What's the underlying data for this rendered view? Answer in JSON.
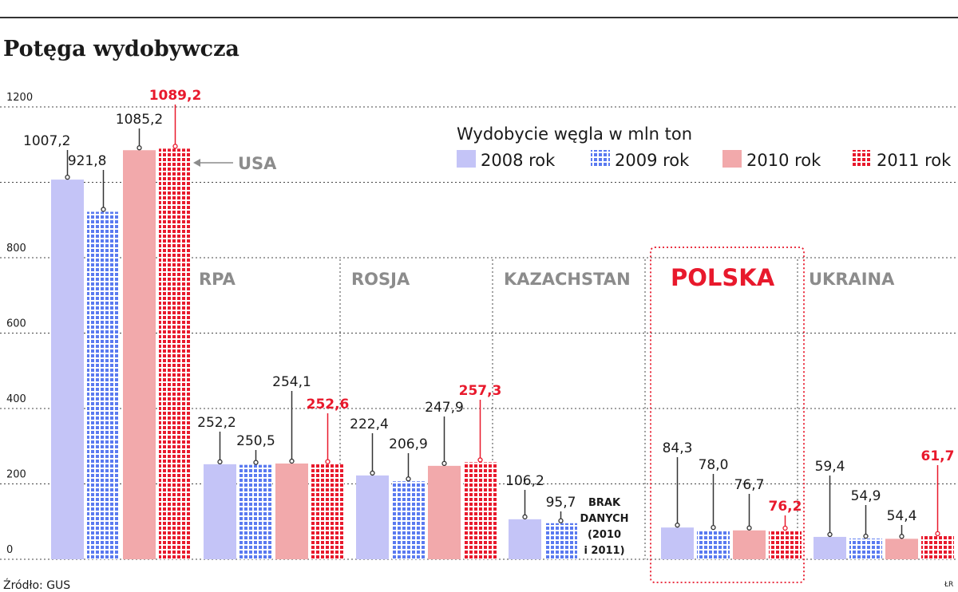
{
  "chart_data": {
    "type": "bar",
    "title": "Potęga wydobywcza",
    "legend_title": "Wydobycie węgla w mln ton",
    "ylim": [
      0,
      1200
    ],
    "yticks": [
      "0",
      "200",
      "400",
      "600",
      "800",
      "1200"
    ],
    "legend_position": "top-right",
    "grid": true,
    "series": [
      {
        "name": "2008 rok",
        "color": "#c4c4f7",
        "pattern": "solid"
      },
      {
        "name": "2009 rok",
        "color": "#5a7af0",
        "pattern": "checkered"
      },
      {
        "name": "2010 rok",
        "color": "#f2a9ab",
        "pattern": "solid"
      },
      {
        "name": "2011 rok",
        "color": "#e8192c",
        "pattern": "checkered"
      }
    ],
    "groups": [
      {
        "name": "USA",
        "values": [
          1007.2,
          921.8,
          1085.2,
          1089.2
        ],
        "labels": [
          "1007,2",
          "921,8",
          "1085,2",
          "1089,2"
        ],
        "highlight": false
      },
      {
        "name": "RPA",
        "values": [
          252.2,
          250.5,
          254.1,
          252.6
        ],
        "labels": [
          "252,2",
          "250,5",
          "254,1",
          "252,6"
        ],
        "highlight": false
      },
      {
        "name": "ROSJA",
        "values": [
          222.4,
          206.9,
          247.9,
          257.3
        ],
        "labels": [
          "222,4",
          "206,9",
          "247,9",
          "257,3"
        ],
        "highlight": false
      },
      {
        "name": "KAZACHSTAN",
        "values": [
          106.2,
          95.7,
          null,
          null
        ],
        "labels": [
          "106,2",
          "95,7",
          null,
          null
        ],
        "highlight": false,
        "note": [
          "BRAK",
          "DANYCH",
          "(2010",
          "i 2011)"
        ]
      },
      {
        "name": "POLSKA",
        "values": [
          84.3,
          78.0,
          76.7,
          76.2
        ],
        "labels": [
          "84,3",
          "78,0",
          "76,7",
          "76,2"
        ],
        "highlight": true
      },
      {
        "name": "UKRAINA",
        "values": [
          59.4,
          54.9,
          54.4,
          61.7
        ],
        "labels": [
          "59,4",
          "54,9",
          "54,4",
          "61,7"
        ],
        "highlight": false
      }
    ]
  },
  "source": "Źródło: GUS",
  "credit": "ŁR"
}
